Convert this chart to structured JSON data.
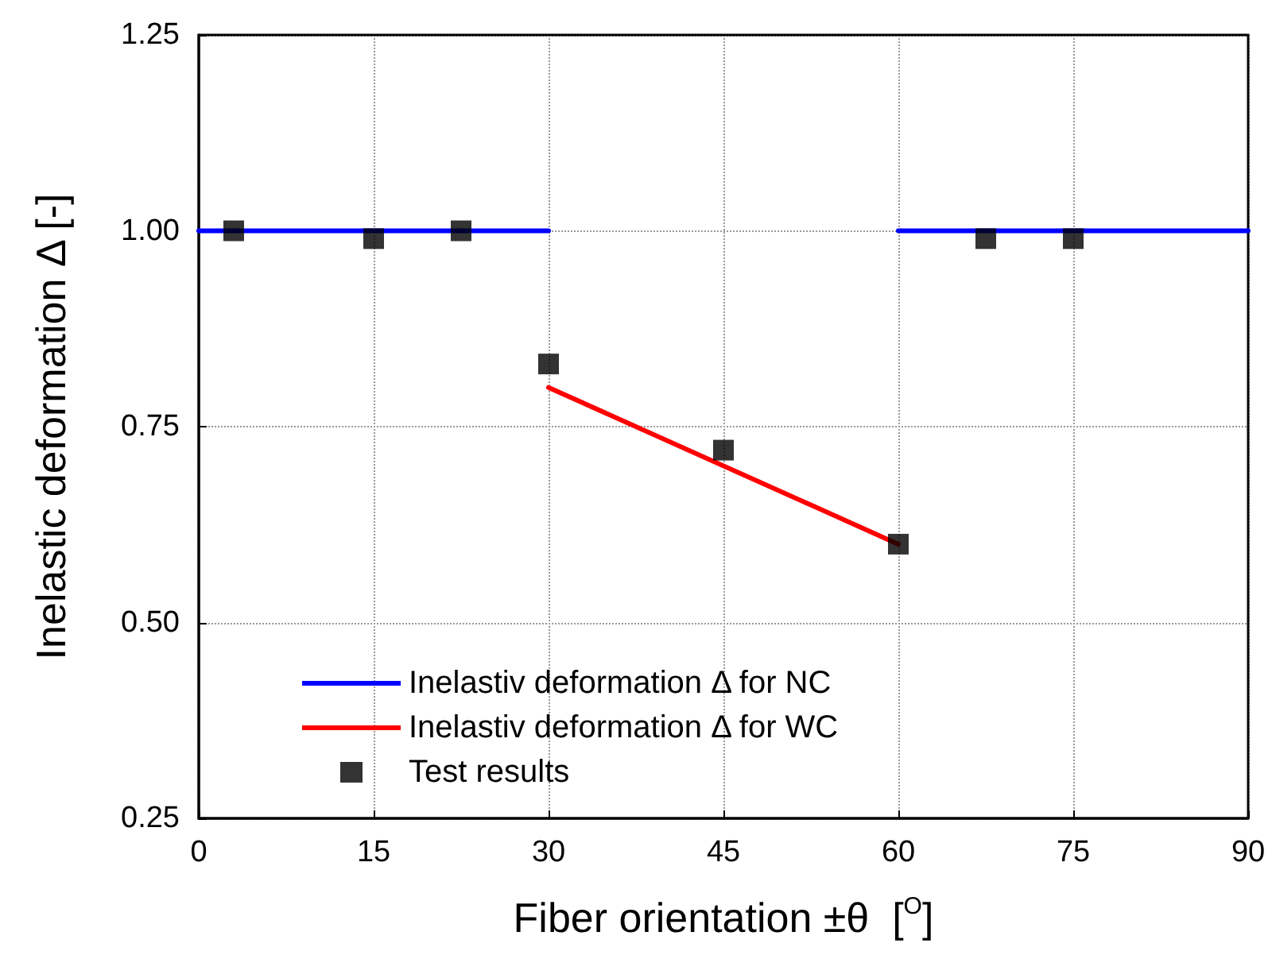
{
  "chart_data": {
    "type": "scatter",
    "xlabel": "Fiber orientation ±θ  [$^{O}$]",
    "ylabel": "Inelastic deformation Δ [-]",
    "xlim": [
      0,
      90
    ],
    "xticks": [
      0,
      15,
      30,
      45,
      60,
      75,
      90
    ],
    "ylim": [
      0.25,
      1.25
    ],
    "yticks": [
      0.25,
      {
        "value": 0.5,
        "label": "0.50"
      },
      0.75,
      {
        "value": 1,
        "label": "1.00"
      },
      1.25
    ],
    "grid": true,
    "legend": "bottom left",
    "series": [
      {
        "name": "Inelastiv deformation Δ for NC",
        "type": "line",
        "color": "#0000ff",
        "marker": "none",
        "line_style": "solid",
        "x": [
          0,
          30,
          45,
          60,
          90
        ],
        "values": [
          1,
          1,
          null,
          1,
          1
        ]
      },
      {
        "name": "Inelastiv deformation Δ for WC",
        "type": "line",
        "color": "#ff0000",
        "marker": "none",
        "line_style": "solid",
        "x": [
          30,
          60
        ],
        "values": [
          0.8,
          0.6
        ]
      },
      {
        "name": "Test results",
        "color": "#000000",
        "marker": "square",
        "x": [
          3,
          15,
          22.5,
          30,
          45,
          60,
          67.5,
          75
        ],
        "values": [
          1.0,
          0.99,
          1.0,
          0.83,
          0.72,
          0.6,
          0.99,
          0.99
        ]
      }
    ]
  }
}
